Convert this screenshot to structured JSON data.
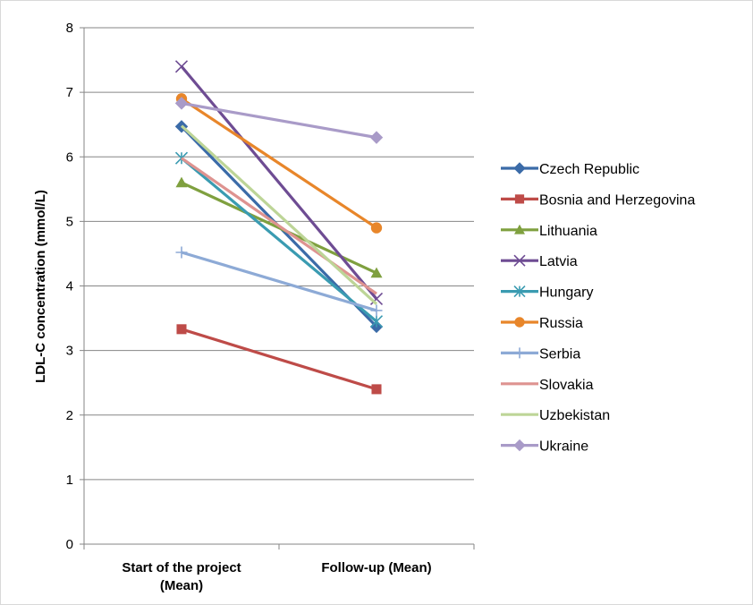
{
  "chart_data": {
    "type": "line",
    "categories": [
      "Start of the project (Mean)",
      "Follow-up (Mean)"
    ],
    "category_lines": [
      [
        "Start of the project",
        "(Mean)"
      ],
      [
        "Follow-up (Mean)"
      ]
    ],
    "ylabel": "LDL-C concentration (mmol/L)",
    "ylim": [
      0,
      8
    ],
    "yticks": [
      "0",
      "1",
      "2",
      "3",
      "4",
      "5",
      "6",
      "7",
      "8"
    ],
    "grid": "horizontal",
    "legend_position": "right",
    "series": [
      {
        "name": "Czech Republic",
        "values": [
          6.47,
          3.37
        ],
        "color": "#3B6BA8",
        "marker": "diamond"
      },
      {
        "name": "Bosnia and Herzegovina",
        "values": [
          3.33,
          2.4
        ],
        "color": "#BE4B48",
        "marker": "square"
      },
      {
        "name": "Lithuania",
        "values": [
          5.6,
          4.2
        ],
        "color": "#7FA03F",
        "marker": "triangle"
      },
      {
        "name": "Latvia",
        "values": [
          7.4,
          3.8
        ],
        "color": "#6E4C93",
        "marker": "x"
      },
      {
        "name": "Hungary",
        "values": [
          5.98,
          3.45
        ],
        "color": "#3A9BB1",
        "marker": "star"
      },
      {
        "name": "Russia",
        "values": [
          6.9,
          4.9
        ],
        "color": "#E8862A",
        "marker": "circle"
      },
      {
        "name": "Serbia",
        "values": [
          4.52,
          3.62
        ],
        "color": "#8DAAD6",
        "marker": "plus"
      },
      {
        "name": "Slovakia",
        "values": [
          5.98,
          3.88
        ],
        "color": "#DE9390",
        "marker": "none"
      },
      {
        "name": "Uzbekistan",
        "values": [
          6.48,
          3.72
        ],
        "color": "#BDD597",
        "marker": "none"
      },
      {
        "name": "Ukraine",
        "values": [
          6.83,
          6.3
        ],
        "color": "#A99BC8",
        "marker": "diamond"
      }
    ]
  }
}
